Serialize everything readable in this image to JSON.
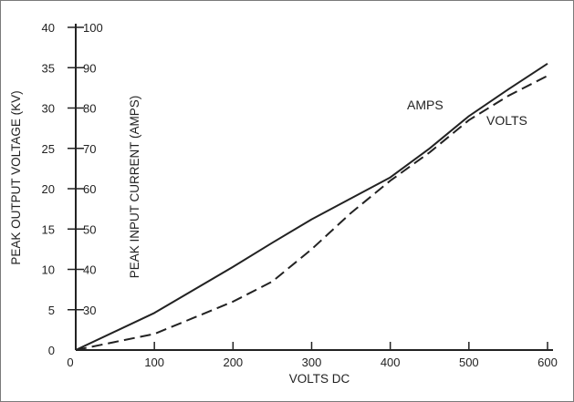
{
  "chart_data": {
    "type": "line",
    "title": "",
    "xlabel": "VOLTS DC",
    "ylabel_left": "PEAK OUTPUT VOLTAGE (KV)",
    "ylabel_right": "PEAK INPUT CURRENT (AMPS)",
    "xlim": [
      0,
      600
    ],
    "ylim_left": [
      0,
      40
    ],
    "ylim_right": [
      20,
      100
    ],
    "x_ticks": [
      0,
      100,
      200,
      300,
      400,
      500,
      600
    ],
    "y_ticks_left": [
      0,
      5,
      10,
      15,
      20,
      25,
      30,
      35,
      40
    ],
    "y_ticks_right": [
      30,
      40,
      50,
      60,
      70,
      80,
      90,
      100
    ],
    "grid": false,
    "legend": "none",
    "series": [
      {
        "name": "VOLTS",
        "axis": "left",
        "style": "solid",
        "x": [
          0,
          100,
          200,
          250,
          300,
          350,
          400,
          450,
          500,
          550,
          600
        ],
        "y": [
          0,
          4.6,
          10.3,
          13.3,
          16.2,
          18.8,
          21.4,
          25.0,
          29.0,
          32.3,
          35.5
        ]
      },
      {
        "name": "AMPS",
        "axis": "right",
        "style": "dashed",
        "x": [
          0,
          50,
          100,
          150,
          200,
          250,
          300,
          350,
          400,
          450,
          500,
          550,
          600
        ],
        "y": [
          20,
          22,
          24,
          28,
          32,
          37,
          45,
          54,
          62,
          69,
          77,
          83,
          88
        ]
      }
    ],
    "annotations": [
      {
        "text": "AMPS",
        "series": "AMPS"
      },
      {
        "text": "VOLTS",
        "series": "VOLTS"
      }
    ]
  }
}
